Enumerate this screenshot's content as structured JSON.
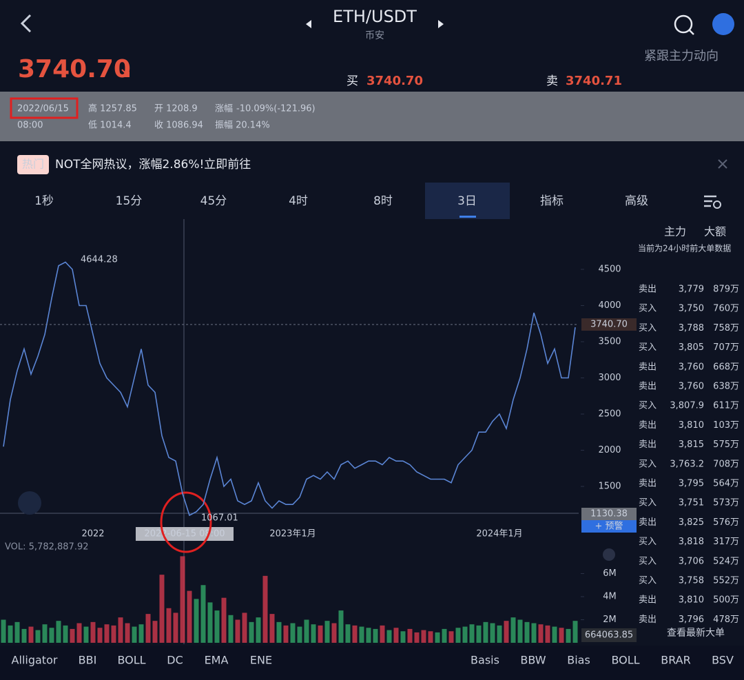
{
  "header": {
    "pair": "ETH/USDT",
    "exchange": "币安",
    "price": "3740.70",
    "follow": "紧跟主力动向",
    "buy_label": "买",
    "buy_price": "3740.70",
    "sell_label": "卖",
    "sell_price": "3740.71"
  },
  "info": {
    "date": "2022/06/15",
    "time": "08:00",
    "high": "高 1257.85",
    "low": "低 1014.4",
    "open": "开 1208.9",
    "close": "收 1086.94",
    "change_label": "涨幅",
    "change": "-10.09%(-121.96)",
    "amplitude": "振幅 20.14%"
  },
  "banner": {
    "tag": "热门",
    "text": "NOT全网热议，涨幅2.86%!立即前往"
  },
  "tabs": [
    "1秒",
    "15分",
    "45分",
    "4时",
    "8时",
    "3日",
    "指标",
    "高级"
  ],
  "chart_data": {
    "type": "line",
    "categories": [
      null,
      null,
      null,
      null,
      null,
      null,
      null,
      null,
      null,
      null,
      null,
      null,
      null,
      "2022",
      null,
      null,
      null,
      null,
      null,
      null,
      null,
      null,
      null,
      null,
      null,
      null,
      null,
      null,
      null,
      null,
      null,
      null,
      null,
      null,
      null,
      null,
      null,
      null,
      null,
      null,
      null,
      null,
      "2023年1月",
      null,
      null,
      null,
      null,
      null,
      null,
      null,
      null,
      null,
      null,
      null,
      null,
      null,
      null,
      null,
      null,
      null,
      null,
      null,
      null,
      null,
      null,
      null,
      null,
      null,
      null,
      null,
      null,
      null,
      "2024年1月",
      null,
      null,
      null,
      null,
      null,
      null,
      null,
      null,
      null,
      null,
      null
    ],
    "series": [
      {
        "color": "#5b86d6",
        "values": [
          2050,
          2700,
          3100,
          3400,
          3050,
          3300,
          3600,
          4100,
          4550,
          4600,
          4500,
          4000,
          4000,
          3600,
          3200,
          3000,
          2900,
          2800,
          2600,
          3000,
          3400,
          2900,
          2800,
          2200,
          1900,
          1850,
          1400,
          1100,
          1150,
          1250,
          1600,
          1900,
          1500,
          1600,
          1300,
          1250,
          1300,
          1550,
          1300,
          1200,
          1300,
          1250,
          1250,
          1350,
          1600,
          1650,
          1600,
          1700,
          1600,
          1800,
          1850,
          1750,
          1800,
          1850,
          1850,
          1800,
          1900,
          1850,
          1850,
          1800,
          1700,
          1650,
          1600,
          1600,
          1600,
          1550,
          1800,
          1900,
          2000,
          2250,
          2250,
          2400,
          2500,
          2300,
          2700,
          3000,
          3400,
          3900,
          3600,
          3200,
          3400,
          3000,
          3000,
          3700
        ]
      },
      {
        "type": "bar",
        "axis": "y2",
        "up_color": "#2f9e63",
        "down_color": "#c6374a",
        "values": [
          2000000,
          1500000,
          1800000,
          1200000,
          1400000,
          1100000,
          1600000,
          1300000,
          1900000,
          1500000,
          1200000,
          1700000,
          1400000,
          1800000,
          1300000,
          1600000,
          1500000,
          2200000,
          1700000,
          1400000,
          1600000,
          2500000,
          1900000,
          5900000,
          3000000,
          2600000,
          7500000,
          4500000,
          3800000,
          5000000,
          3500000,
          2800000,
          3900000,
          2400000,
          2000000,
          2600000,
          1800000,
          2200000,
          5800000,
          2500000,
          1800000,
          1500000,
          1700000,
          1400000,
          2000000,
          1600000,
          1500000,
          1900000,
          1700000,
          2800000,
          1600000,
          1500000,
          1400000,
          1300000,
          1200000,
          1500000,
          1100000,
          1300000,
          1000000,
          1200000,
          900000,
          1100000,
          1000000,
          900000,
          1200000,
          1000000,
          1300000,
          1400000,
          1600000,
          1500000,
          1800000,
          1700000,
          1500000,
          1900000,
          2200000,
          2000000,
          1800000,
          1700000,
          1600000,
          1500000,
          1400000,
          1300000,
          1200000,
          1900000
        ]
      }
    ],
    "ylim": [
      938,
      5195
    ],
    "yticks": [
      1500,
      2000,
      2500,
      3000,
      3500,
      4000,
      4500
    ],
    "y2lim": [
      0,
      7940000
    ],
    "y2ticks": [
      {
        "value": 2000000,
        "label": "2M"
      },
      {
        "value": 4000000,
        "label": "4M"
      },
      {
        "value": 6000000,
        "label": "6M"
      }
    ],
    "high_label": "4644.28",
    "low_label": "1067.01",
    "last_price": "3740.70",
    "cross_price": "1130.38",
    "alert": "+ 预警",
    "cross_date": "2022-06-15 08:00",
    "vol_label": "VOL: 5,782,887.92",
    "vol_last": "664063.85"
  },
  "side_panel": {
    "tabs": [
      "主力",
      "大额"
    ],
    "note": "当前为24小时前大单数据",
    "rows": [
      [
        "卖出",
        "3,779",
        "879万"
      ],
      [
        "买入",
        "3,750",
        "760万"
      ],
      [
        "买入",
        "3,788",
        "758万"
      ],
      [
        "买入",
        "3,805",
        "707万"
      ],
      [
        "卖出",
        "3,760",
        "668万"
      ],
      [
        "卖出",
        "3,760",
        "638万"
      ],
      [
        "买入",
        "3,807.9",
        "611万"
      ],
      [
        "卖出",
        "3,810",
        "103万"
      ],
      [
        "卖出",
        "3,815",
        "575万"
      ],
      [
        "买入",
        "3,763.2",
        "708万"
      ],
      [
        "卖出",
        "3,795",
        "564万"
      ],
      [
        "买入",
        "3,751",
        "573万"
      ],
      [
        "卖出",
        "3,825",
        "576万"
      ],
      [
        "买入",
        "3,818",
        "317万"
      ],
      [
        "买入",
        "3,706",
        "524万"
      ],
      [
        "买入",
        "3,758",
        "552万"
      ],
      [
        "卖出",
        "3,810",
        "500万"
      ],
      [
        "卖出",
        "3,796",
        "478万"
      ]
    ],
    "footer": "查看最新大单"
  },
  "indicators": [
    "Alligator",
    "BBI",
    "BOLL",
    "DC",
    "EMA",
    "ENE",
    "Basis",
    "BBW",
    "Bias",
    "BOLL",
    "BRAR",
    "BSV"
  ]
}
